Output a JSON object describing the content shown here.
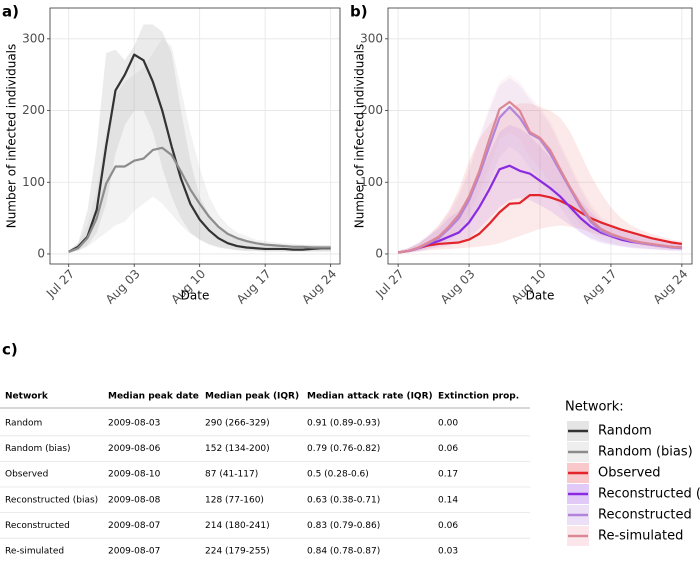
{
  "chart_data": [
    {
      "type": "line",
      "label": "a)",
      "x_label": "Date",
      "y_label": "Number of infected individuals",
      "x": [
        "Jul 27",
        "Jul 28",
        "Jul 29",
        "Jul 30",
        "Jul 31",
        "Aug 01",
        "Aug 02",
        "Aug 03",
        "Aug 04",
        "Aug 05",
        "Aug 06",
        "Aug 07",
        "Aug 08",
        "Aug 09",
        "Aug 10",
        "Aug 11",
        "Aug 12",
        "Aug 13",
        "Aug 14",
        "Aug 15",
        "Aug 16",
        "Aug 17",
        "Aug 18",
        "Aug 19",
        "Aug 20",
        "Aug 21",
        "Aug 22",
        "Aug 23",
        "Aug 24"
      ],
      "xlim": [
        "Jul 25",
        "Aug 25"
      ],
      "xticks": [
        "Jul 27",
        "Aug 03",
        "Aug 10",
        "Aug 17",
        "Aug 24"
      ],
      "ylim": [
        -14,
        343
      ],
      "yticks": [
        0,
        100,
        200,
        300
      ],
      "grid": true,
      "ribbon_opacity": 0.2,
      "series": [
        {
          "name": "Random",
          "color": "#333333",
          "ribbon_color": "#999999",
          "values": [
            3,
            10,
            24,
            62,
            150,
            228,
            250,
            278,
            270,
            240,
            200,
            150,
            105,
            70,
            48,
            33,
            22,
            15,
            11,
            9,
            8,
            7,
            7,
            7,
            6,
            6,
            7,
            8,
            8
          ],
          "upper": [
            5,
            15,
            60,
            150,
            280,
            285,
            270,
            290,
            320,
            320,
            310,
            280,
            200,
            130,
            80,
            55,
            38,
            28,
            22,
            18,
            16,
            14,
            13,
            13,
            12,
            12,
            12,
            12,
            12
          ],
          "lower": [
            1,
            5,
            12,
            30,
            70,
            140,
            180,
            200,
            200,
            170,
            120,
            80,
            50,
            30,
            20,
            13,
            9,
            7,
            5,
            4,
            4,
            3,
            3,
            3,
            3,
            3,
            3,
            3,
            3
          ]
        },
        {
          "name": "Random (bias)",
          "color": "#8c8c8c",
          "ribbon_color": "#bdbdbd",
          "values": [
            3,
            8,
            22,
            50,
            98,
            122,
            122,
            130,
            133,
            145,
            148,
            138,
            115,
            90,
            70,
            52,
            38,
            28,
            22,
            18,
            15,
            13,
            12,
            11,
            10,
            10,
            9,
            9,
            9
          ],
          "upper": [
            5,
            15,
            40,
            90,
            170,
            220,
            240,
            250,
            260,
            280,
            300,
            290,
            230,
            170,
            120,
            80,
            55,
            40,
            30,
            25,
            20,
            18,
            16,
            15,
            14,
            13,
            13,
            12,
            12
          ],
          "lower": [
            1,
            4,
            10,
            20,
            30,
            40,
            45,
            60,
            70,
            80,
            70,
            55,
            40,
            28,
            20,
            14,
            10,
            8,
            6,
            5,
            5,
            4,
            4,
            4,
            4,
            4,
            4,
            4,
            4
          ]
        }
      ]
    },
    {
      "type": "line",
      "label": "b)",
      "x_label": "Date",
      "y_label": "Number of infected individuals",
      "x": [
        "Jul 27",
        "Jul 28",
        "Jul 29",
        "Jul 30",
        "Jul 31",
        "Aug 01",
        "Aug 02",
        "Aug 03",
        "Aug 04",
        "Aug 05",
        "Aug 06",
        "Aug 07",
        "Aug 08",
        "Aug 09",
        "Aug 10",
        "Aug 11",
        "Aug 12",
        "Aug 13",
        "Aug 14",
        "Aug 15",
        "Aug 16",
        "Aug 17",
        "Aug 18",
        "Aug 19",
        "Aug 20",
        "Aug 21",
        "Aug 22",
        "Aug 23",
        "Aug 24"
      ],
      "xlim": [
        "Jul 26",
        "Aug 25"
      ],
      "xticks": [
        "Jul 27",
        "Aug 03",
        "Aug 10",
        "Aug 17",
        "Aug 24"
      ],
      "ylim": [
        -14,
        343
      ],
      "yticks": [
        0,
        100,
        200,
        300
      ],
      "grid": true,
      "ribbon_opacity": 0.1,
      "series": [
        {
          "name": "Observed",
          "color": "#e3242b",
          "ribbon_color": "#e3242b",
          "values": [
            2,
            4,
            8,
            12,
            14,
            15,
            16,
            20,
            28,
            42,
            58,
            70,
            71,
            82,
            82,
            79,
            74,
            67,
            58,
            50,
            44,
            39,
            34,
            30,
            26,
            22,
            19,
            16,
            14
          ],
          "upper": [
            4,
            8,
            15,
            25,
            40,
            60,
            90,
            130,
            160,
            180,
            195,
            205,
            210,
            210,
            205,
            200,
            190,
            170,
            140,
            110,
            85,
            65,
            50,
            40,
            33,
            28,
            24,
            20,
            18
          ],
          "lower": [
            1,
            2,
            3,
            5,
            6,
            7,
            8,
            9,
            10,
            12,
            15,
            20,
            25,
            30,
            35,
            38,
            40,
            38,
            35,
            30,
            26,
            22,
            18,
            15,
            12,
            10,
            8,
            7,
            6
          ]
        },
        {
          "name": "Reconstructed (bias)",
          "color": "#8a2be2",
          "ribbon_color": "#8a2be2",
          "values": [
            2,
            4,
            8,
            14,
            18,
            24,
            30,
            44,
            65,
            90,
            118,
            123,
            116,
            112,
            102,
            92,
            80,
            65,
            50,
            38,
            30,
            25,
            20,
            17,
            15,
            13,
            11,
            10,
            9
          ],
          "upper": [
            4,
            8,
            14,
            25,
            35,
            50,
            60,
            80,
            110,
            140,
            170,
            180,
            175,
            165,
            150,
            135,
            115,
            95,
            75,
            58,
            45,
            38,
            32,
            28,
            25,
            22,
            20,
            18,
            16
          ],
          "lower": [
            1,
            2,
            4,
            7,
            9,
            12,
            15,
            22,
            35,
            50,
            65,
            75,
            78,
            75,
            68,
            60,
            50,
            40,
            30,
            22,
            17,
            14,
            11,
            9,
            8,
            7,
            6,
            5,
            5
          ]
        },
        {
          "name": "Reconstructed",
          "color": "#b384dc",
          "ribbon_color": "#b384dc",
          "values": [
            2,
            4,
            8,
            15,
            22,
            35,
            50,
            75,
            110,
            150,
            190,
            205,
            190,
            168,
            160,
            140,
            115,
            90,
            65,
            45,
            32,
            26,
            22,
            18,
            15,
            13,
            11,
            9,
            8
          ],
          "upper": [
            4,
            8,
            15,
            25,
            38,
            55,
            80,
            115,
            160,
            200,
            235,
            245,
            235,
            215,
            200,
            180,
            150,
            120,
            90,
            65,
            48,
            38,
            32,
            27,
            23,
            20,
            17,
            15,
            13
          ],
          "lower": [
            1,
            2,
            4,
            8,
            12,
            18,
            28,
            45,
            70,
            100,
            135,
            150,
            140,
            120,
            105,
            85,
            65,
            45,
            30,
            20,
            15,
            12,
            10,
            8,
            7,
            6,
            5,
            4,
            4
          ]
        },
        {
          "name": "Re-simulated",
          "color": "#dc8795",
          "ribbon_color": "#f0a0b0",
          "values": [
            2,
            4,
            9,
            16,
            24,
            38,
            55,
            80,
            115,
            160,
            202,
            212,
            200,
            170,
            162,
            145,
            118,
            92,
            68,
            48,
            35,
            28,
            23,
            19,
            16,
            14,
            12,
            10,
            9
          ],
          "upper": [
            4,
            8,
            16,
            28,
            40,
            60,
            85,
            120,
            165,
            205,
            240,
            250,
            240,
            220,
            205,
            185,
            155,
            125,
            95,
            70,
            52,
            42,
            35,
            29,
            25,
            22,
            19,
            17,
            15
          ],
          "lower": [
            1,
            2,
            5,
            9,
            14,
            22,
            35,
            55,
            85,
            120,
            160,
            170,
            160,
            135,
            120,
            100,
            80,
            58,
            40,
            28,
            20,
            15,
            12,
            10,
            8,
            7,
            6,
            5,
            5
          ]
        }
      ]
    }
  ],
  "legend_title": "Network:",
  "table": {
    "label": "c)",
    "columns": [
      "Network",
      "Median peak date",
      "Median peak (IQR)",
      "Median attack rate (IQR)",
      "Extinction prop."
    ],
    "rows": [
      [
        "Random",
        "2009-08-03",
        "290 (266-329)",
        "0.91 (0.89-0.93)",
        "0.00"
      ],
      [
        "Random (bias)",
        "2009-08-06",
        "152 (134-200)",
        "0.79 (0.76-0.82)",
        "0.06"
      ],
      [
        "Observed",
        "2009-08-10",
        "87 (41-117)",
        "0.5 (0.28-0.6)",
        "0.17"
      ],
      [
        "Reconstructed (bias)",
        "2009-08-08",
        "128 (77-160)",
        "0.63 (0.38-0.71)",
        "0.14"
      ],
      [
        "Reconstructed",
        "2009-08-07",
        "214 (180-241)",
        "0.83 (0.79-0.86)",
        "0.06"
      ],
      [
        "Re-simulated",
        "2009-08-07",
        "224 (179-255)",
        "0.84 (0.78-0.87)",
        "0.03"
      ]
    ]
  }
}
